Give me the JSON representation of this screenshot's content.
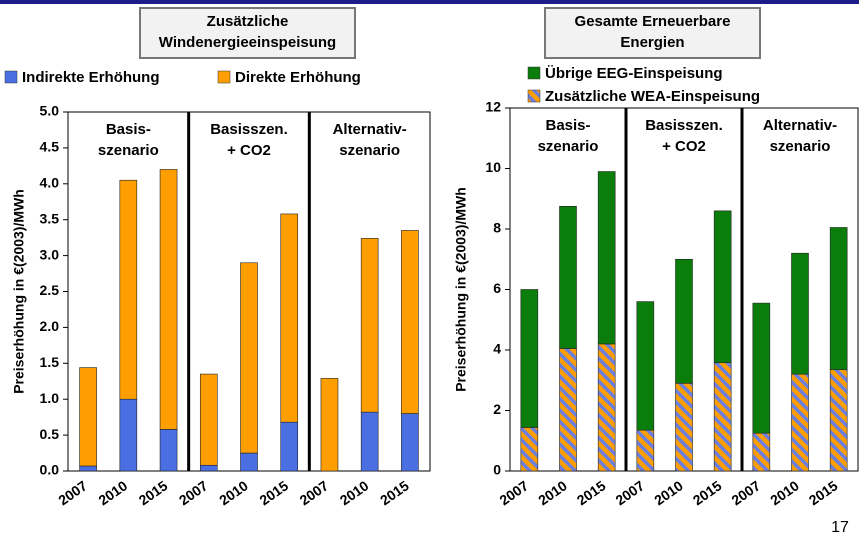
{
  "page_number": "17",
  "chart_data": [
    {
      "type": "bar",
      "stacked": true,
      "title": [
        "Zusätzliche",
        "Windenergieeinspeisung"
      ],
      "ylabel": "Preiserhöhung in €(2003)/MWh",
      "categories": [
        "2007",
        "2010",
        "2015",
        "2007",
        "2010",
        "2015",
        "2007",
        "2010",
        "2015"
      ],
      "groups": [
        [
          "Basis-",
          "szenario"
        ],
        [
          "Basisszen.",
          "+ CO2"
        ],
        [
          "Alternativ-",
          "szenario"
        ]
      ],
      "series": [
        {
          "name": "Indirekte Erhöhung",
          "color": "#4a6fe3",
          "values": [
            0.07,
            1.0,
            0.58,
            0.08,
            0.25,
            0.68,
            0.0,
            0.82,
            0.8
          ]
        },
        {
          "name": "Direkte Erhöhung",
          "color": "#ff9e00",
          "values": [
            1.37,
            3.05,
            3.62,
            1.27,
            2.65,
            2.9,
            1.29,
            2.42,
            2.55
          ]
        }
      ],
      "ylim": [
        0,
        5
      ],
      "yticks": [
        {
          "value": 0,
          "label": "0.0"
        },
        0.5,
        {
          "value": 1,
          "label": "1.0"
        },
        1.5,
        {
          "value": 2,
          "label": "2.0"
        },
        2.5,
        {
          "value": 3,
          "label": "3.0"
        },
        3.5,
        {
          "value": 4,
          "label": "4.0"
        },
        4.5,
        {
          "value": 5,
          "label": "5.0"
        }
      ],
      "grid": false,
      "legend": "top",
      "legend_order": "forward"
    },
    {
      "type": "bar",
      "stacked": true,
      "title": [
        "Gesamte Erneuerbare",
        "Energien"
      ],
      "ylabel": "Preiserhöhung in €(2003)/MWh",
      "categories": [
        "2007",
        "2010",
        "2015",
        "2007",
        "2010",
        "2015",
        "2007",
        "2010",
        "2015"
      ],
      "groups": [
        [
          "Basis-",
          "szenario"
        ],
        [
          "Basisszen.",
          "+ CO2"
        ],
        [
          "Alternativ-",
          "szenario"
        ]
      ],
      "series": [
        {
          "name": "Zusätzliche WEA-Einspeisung",
          "color": "#ff9e00",
          "hatch_color": "#6a7fe0",
          "values": [
            1.44,
            4.05,
            4.2,
            1.35,
            2.9,
            3.58,
            1.25,
            3.2,
            3.35
          ]
        },
        {
          "name": "Übrige EEG-Einspeisung",
          "color": "#0a7d0a",
          "values": [
            4.56,
            4.7,
            5.7,
            4.25,
            4.1,
            5.02,
            4.3,
            4.0,
            4.7
          ]
        }
      ],
      "ylim": [
        0,
        12
      ],
      "yticks": [
        0,
        2,
        4,
        6,
        8,
        10,
        12
      ],
      "grid": false,
      "legend": "top",
      "legend_order": "reverse"
    }
  ]
}
